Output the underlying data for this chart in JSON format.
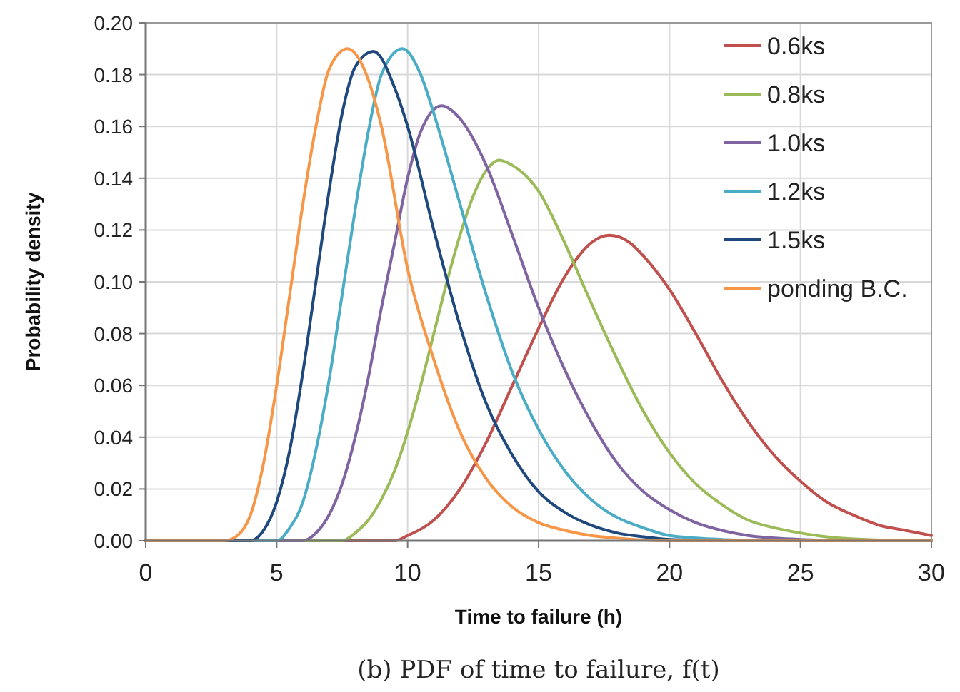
{
  "chart_data": {
    "type": "line",
    "xlabel": "Time to failure (h)",
    "ylabel": "Probability density",
    "annotations": [
      "(b) PDF of time to failure, f(t)"
    ],
    "xlim": [
      0,
      30
    ],
    "xticks": [
      0,
      5,
      10,
      15,
      20,
      25,
      30
    ],
    "ylim": [
      0,
      0.2
    ],
    "yticks": [
      {
        "value": 0,
        "label": "0.00"
      },
      {
        "value": 0.02,
        "label": "0.02"
      },
      {
        "value": 0.04,
        "label": "0.04"
      },
      {
        "value": 0.06,
        "label": "0.06"
      },
      {
        "value": 0.08,
        "label": "0.08"
      },
      {
        "value": 0.1,
        "label": "0.10"
      },
      {
        "value": 0.12,
        "label": "0.12"
      },
      {
        "value": 0.14,
        "label": "0.14"
      },
      {
        "value": 0.16,
        "label": "0.16"
      },
      {
        "value": 0.18,
        "label": "0.18"
      },
      {
        "value": 0.2,
        "label": "0.20"
      }
    ],
    "grid": true,
    "legend": "top right",
    "marker": "none",
    "line_style": "solid",
    "series": [
      {
        "name": "0.6ks",
        "color": "#c0504d",
        "x": [
          0,
          9.5,
          10,
          11,
          12,
          13,
          14,
          15,
          16,
          17,
          17.7,
          18.5,
          19,
          20,
          21,
          22,
          23,
          24,
          25,
          26,
          27,
          28,
          29,
          30
        ],
        "values": [
          0,
          0,
          0.002,
          0.008,
          0.02,
          0.038,
          0.06,
          0.082,
          0.102,
          0.115,
          0.118,
          0.115,
          0.11,
          0.097,
          0.08,
          0.062,
          0.046,
          0.033,
          0.023,
          0.015,
          0.01,
          0.006,
          0.004,
          0.002
        ]
      },
      {
        "name": "0.8ks",
        "color": "#9bbb59",
        "x": [
          0,
          7.5,
          8,
          8.5,
          9,
          9.5,
          10,
          10.5,
          11,
          11.5,
          12,
          12.5,
          13,
          13.5,
          14,
          15,
          16,
          17,
          18,
          19,
          20,
          21,
          22,
          23,
          24,
          25,
          26,
          28,
          30
        ],
        "values": [
          0,
          0,
          0.003,
          0.008,
          0.016,
          0.027,
          0.042,
          0.06,
          0.08,
          0.1,
          0.118,
          0.133,
          0.143,
          0.147,
          0.145,
          0.135,
          0.115,
          0.092,
          0.07,
          0.05,
          0.034,
          0.022,
          0.014,
          0.008,
          0.005,
          0.003,
          0.0015,
          0.0003,
          0
        ]
      },
      {
        "name": "1.0ks",
        "color": "#8064a2",
        "x": [
          0,
          6,
          6.5,
          7,
          7.5,
          8,
          8.5,
          9,
          9.5,
          10,
          10.5,
          11.3,
          12,
          13,
          14,
          15,
          16,
          17,
          18,
          19,
          20,
          21,
          22,
          23,
          25,
          27,
          30
        ],
        "values": [
          0,
          0,
          0.003,
          0.01,
          0.022,
          0.04,
          0.063,
          0.09,
          0.115,
          0.14,
          0.158,
          0.168,
          0.163,
          0.145,
          0.118,
          0.09,
          0.066,
          0.046,
          0.03,
          0.019,
          0.012,
          0.007,
          0.004,
          0.002,
          0.0005,
          0,
          0
        ]
      },
      {
        "name": "1.2ks",
        "color": "#4bacc6",
        "x": [
          0,
          5,
          5.5,
          6,
          6.5,
          7,
          7.5,
          8,
          8.5,
          9,
          9.8,
          10.5,
          11,
          12,
          13,
          14,
          15,
          16,
          17,
          18,
          19,
          20,
          22,
          24,
          30
        ],
        "values": [
          0,
          0,
          0.005,
          0.015,
          0.035,
          0.062,
          0.095,
          0.128,
          0.158,
          0.18,
          0.19,
          0.18,
          0.165,
          0.13,
          0.095,
          0.065,
          0.043,
          0.027,
          0.016,
          0.009,
          0.005,
          0.002,
          0.0005,
          0,
          0
        ]
      },
      {
        "name": "1.5ks",
        "color": "#1f497d",
        "x": [
          0,
          4,
          4.5,
          5,
          5.5,
          6,
          6.5,
          7,
          7.5,
          8,
          8.7,
          9.5,
          10,
          11,
          12,
          13,
          14,
          15,
          16,
          17,
          18,
          19,
          20,
          22,
          30
        ],
        "values": [
          0,
          0,
          0.004,
          0.015,
          0.035,
          0.065,
          0.1,
          0.135,
          0.165,
          0.183,
          0.189,
          0.175,
          0.16,
          0.12,
          0.083,
          0.053,
          0.033,
          0.019,
          0.011,
          0.006,
          0.003,
          0.0015,
          0.0005,
          0,
          0
        ]
      },
      {
        "name": "ponding B.C.",
        "color": "#f79646",
        "x": [
          0,
          3,
          3.5,
          4,
          4.5,
          5,
          5.5,
          6,
          6.5,
          7,
          7.7,
          8.5,
          9,
          10,
          11,
          12,
          13,
          14,
          15,
          16,
          17,
          18,
          20,
          30
        ],
        "values": [
          0,
          0,
          0.002,
          0.01,
          0.03,
          0.06,
          0.095,
          0.13,
          0.16,
          0.182,
          0.19,
          0.178,
          0.16,
          0.105,
          0.07,
          0.042,
          0.024,
          0.013,
          0.007,
          0.004,
          0.002,
          0.001,
          0,
          0
        ]
      }
    ]
  }
}
